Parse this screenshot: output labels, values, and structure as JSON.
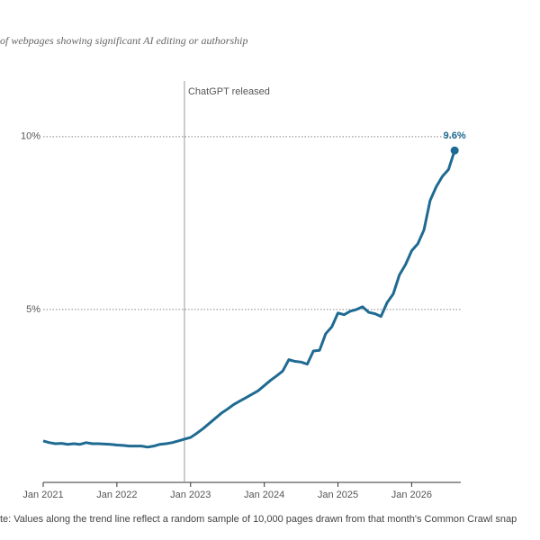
{
  "chart_data": {
    "type": "line",
    "title": "of webpages showing significant AI editing or authorship",
    "note": "te: Values along the trend line reflect a random sample of 10,000 pages drawn from that month's Common Crawl snap",
    "x": [
      "2021-01",
      "2021-02",
      "2021-03",
      "2021-04",
      "2021-05",
      "2021-06",
      "2021-07",
      "2021-08",
      "2021-09",
      "2021-10",
      "2021-11",
      "2021-12",
      "2022-01",
      "2022-02",
      "2022-03",
      "2022-04",
      "2022-05",
      "2022-06",
      "2022-07",
      "2022-08",
      "2022-09",
      "2022-10",
      "2022-11",
      "2022-12",
      "2023-01",
      "2023-02",
      "2023-03",
      "2023-04",
      "2023-05",
      "2023-06",
      "2023-07",
      "2023-08",
      "2023-09",
      "2023-10",
      "2023-11",
      "2023-12",
      "2024-01",
      "2024-02",
      "2024-03",
      "2024-04",
      "2024-05",
      "2024-06",
      "2024-07",
      "2024-08",
      "2024-09",
      "2024-10",
      "2024-11",
      "2024-12",
      "2025-01",
      "2025-02",
      "2025-03",
      "2025-04",
      "2025-05",
      "2025-06",
      "2025-07",
      "2025-08",
      "2025-09",
      "2025-10",
      "2025-11",
      "2025-12",
      "2026-01",
      "2026-02",
      "2026-03",
      "2026-04",
      "2026-05",
      "2026-06",
      "2026-07",
      "2026-08"
    ],
    "series": [
      {
        "color": "#1f6a92",
        "values": [
          1.2,
          1.15,
          1.12,
          1.13,
          1.1,
          1.12,
          1.1,
          1.15,
          1.12,
          1.12,
          1.11,
          1.1,
          1.08,
          1.07,
          1.05,
          1.05,
          1.05,
          1.02,
          1.05,
          1.1,
          1.12,
          1.15,
          1.2,
          1.25,
          1.3,
          1.42,
          1.55,
          1.7,
          1.85,
          2.0,
          2.12,
          2.25,
          2.35,
          2.45,
          2.55,
          2.65,
          2.8,
          2.95,
          3.08,
          3.22,
          3.55,
          3.5,
          3.48,
          3.42,
          3.8,
          3.82,
          4.3,
          4.5,
          4.9,
          4.85,
          4.95,
          5.0,
          5.08,
          4.92,
          4.88,
          4.8,
          5.2,
          5.45,
          6.0,
          6.3,
          6.7,
          6.9,
          7.3,
          8.15,
          8.55,
          8.85,
          9.05,
          9.6
        ],
        "value_labels": [
          null,
          null,
          null,
          null,
          null,
          null,
          null,
          null,
          null,
          null,
          null,
          null,
          null,
          null,
          null,
          null,
          null,
          null,
          null,
          null,
          null,
          null,
          null,
          null,
          null,
          null,
          null,
          null,
          null,
          null,
          null,
          null,
          null,
          null,
          null,
          null,
          null,
          null,
          null,
          null,
          null,
          null,
          null,
          null,
          null,
          null,
          null,
          null,
          null,
          null,
          null,
          null,
          null,
          null,
          null,
          null,
          null,
          null,
          null,
          null,
          null,
          null,
          null,
          null,
          null,
          null,
          null,
          "9.6%"
        ]
      }
    ],
    "xlim": [
      "2021-01",
      "2026-09"
    ],
    "xticks": [
      {
        "value": "2021-01",
        "label": "Jan 2021"
      },
      {
        "value": "2022-01",
        "label": "Jan 2022"
      },
      {
        "value": "2023-01",
        "label": "Jan 2023"
      },
      {
        "value": "2024-01",
        "label": "Jan 2024"
      },
      {
        "value": "2025-01",
        "label": "Jan 2025"
      },
      {
        "value": "2026-01",
        "label": "Jan 2026"
      }
    ],
    "ylim": [
      0,
      12
    ],
    "yticks": [
      {
        "value": 5,
        "label": "5%"
      },
      {
        "value": 10,
        "label": "10%"
      }
    ],
    "grid": true,
    "annotations": [
      {
        "x": "2022-12",
        "text": "ChatGPT released"
      }
    ]
  }
}
